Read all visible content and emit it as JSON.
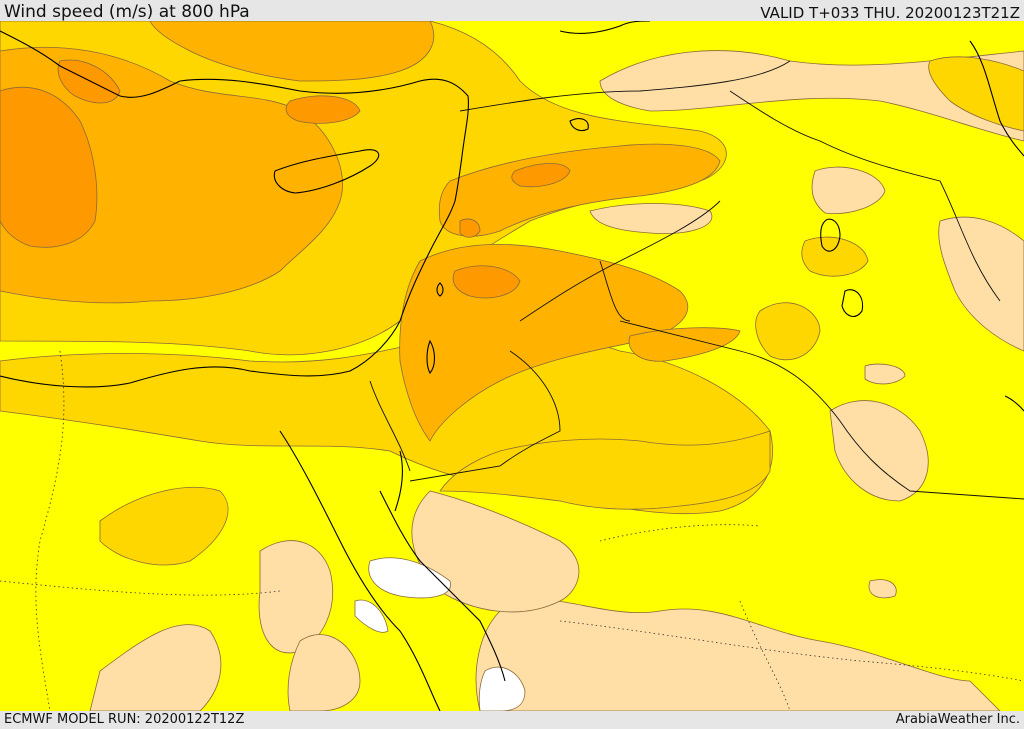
{
  "header": {
    "title": "Wind speed (m/s) at 800 hPa",
    "valid": "VALID T+033 THU. 20200123T21Z"
  },
  "footer": {
    "model_run": "ECMWF MODEL RUN: 20200122T12Z",
    "brand": "ArabiaWeather Inc."
  },
  "map": {
    "variable": "wind speed",
    "units": "m/s",
    "level": "800 hPa",
    "colors": {
      "calm": "#ffffff",
      "light": "#ffdfa6",
      "moderate": "#ffff00",
      "fresh": "#ffd700",
      "strong": "#ffb300",
      "stronger": "#ff9900",
      "strongest": "#f07d14",
      "coast": "#000000",
      "contour": "#8a6a3a"
    }
  }
}
